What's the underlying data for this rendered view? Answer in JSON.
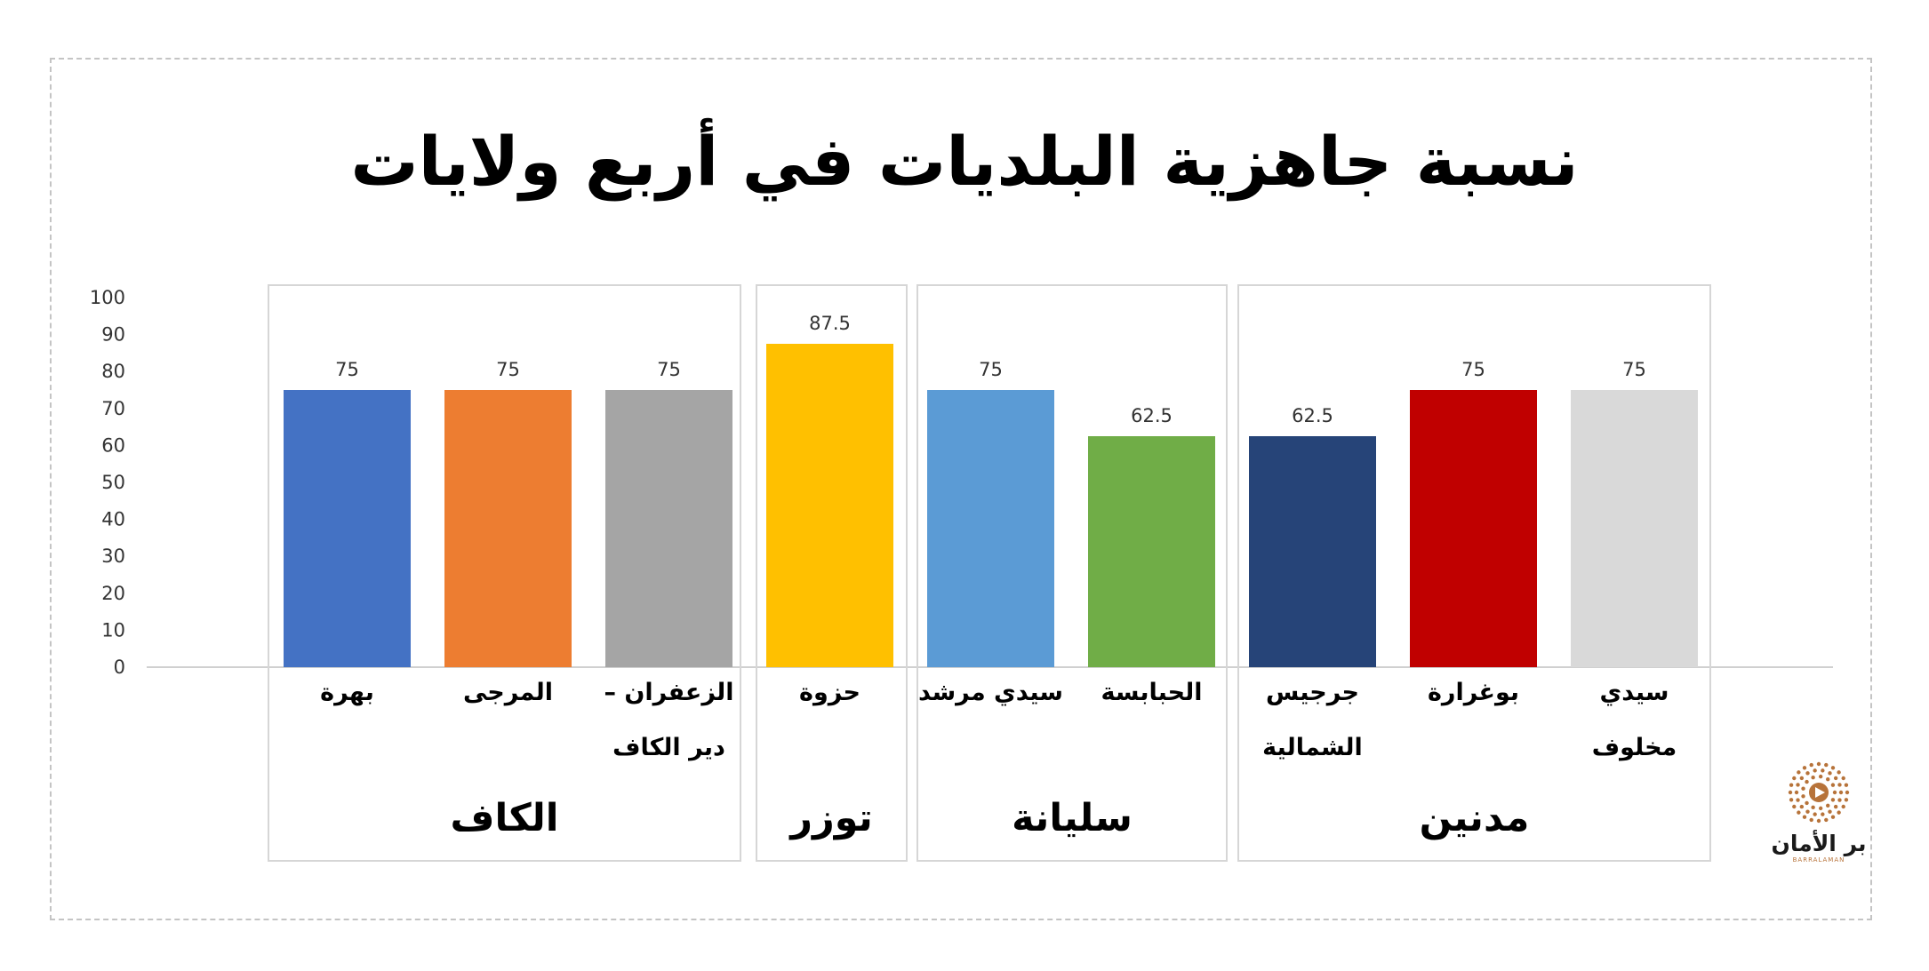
{
  "chart_data": {
    "type": "bar",
    "title": "نسبة جاهزية البلديات في أربع ولايات",
    "ylim": [
      0,
      100
    ],
    "yticks": [
      0,
      10,
      20,
      30,
      40,
      50,
      60,
      70,
      80,
      90,
      100
    ],
    "grid": false,
    "groups": [
      {
        "name": "الكاف",
        "bars": [
          {
            "label": [
              "بهرة"
            ],
            "value": 75,
            "value_label": "75",
            "color": "#4472C4"
          },
          {
            "label": [
              "المرجى"
            ],
            "value": 75,
            "value_label": "75",
            "color": "#ED7D31"
          },
          {
            "label": [
              "الزعفران –",
              "دير الكاف"
            ],
            "value": 75,
            "value_label": "75",
            "color": "#A5A5A5"
          }
        ]
      },
      {
        "name": "توزر",
        "bars": [
          {
            "label": [
              "حزوة"
            ],
            "value": 87.5,
            "value_label": "87.5",
            "color": "#FFC000"
          }
        ]
      },
      {
        "name": "سليانة",
        "bars": [
          {
            "label": [
              "سيدي مرشد"
            ],
            "value": 75,
            "value_label": "75",
            "color": "#5B9BD5"
          },
          {
            "label": [
              "الحبابسة"
            ],
            "value": 62.5,
            "value_label": "62.5",
            "color": "#70AD47"
          }
        ]
      },
      {
        "name": "مدنين",
        "bars": [
          {
            "label": [
              "جرجيس",
              "الشمالية"
            ],
            "value": 62.5,
            "value_label": "62.5",
            "color": "#264478"
          },
          {
            "label": [
              "بوغرارة"
            ],
            "value": 75,
            "value_label": "75",
            "color": "#C00000"
          },
          {
            "label": [
              "سيدي",
              "مخلوف"
            ],
            "value": 75,
            "value_label": "75",
            "color": "#D9D9D9"
          }
        ]
      }
    ]
  },
  "logo": {
    "text": "بر الأمان",
    "subtext": "BARRALAMAN",
    "icon": "play-broadcast-icon",
    "color": "#B7733A"
  }
}
